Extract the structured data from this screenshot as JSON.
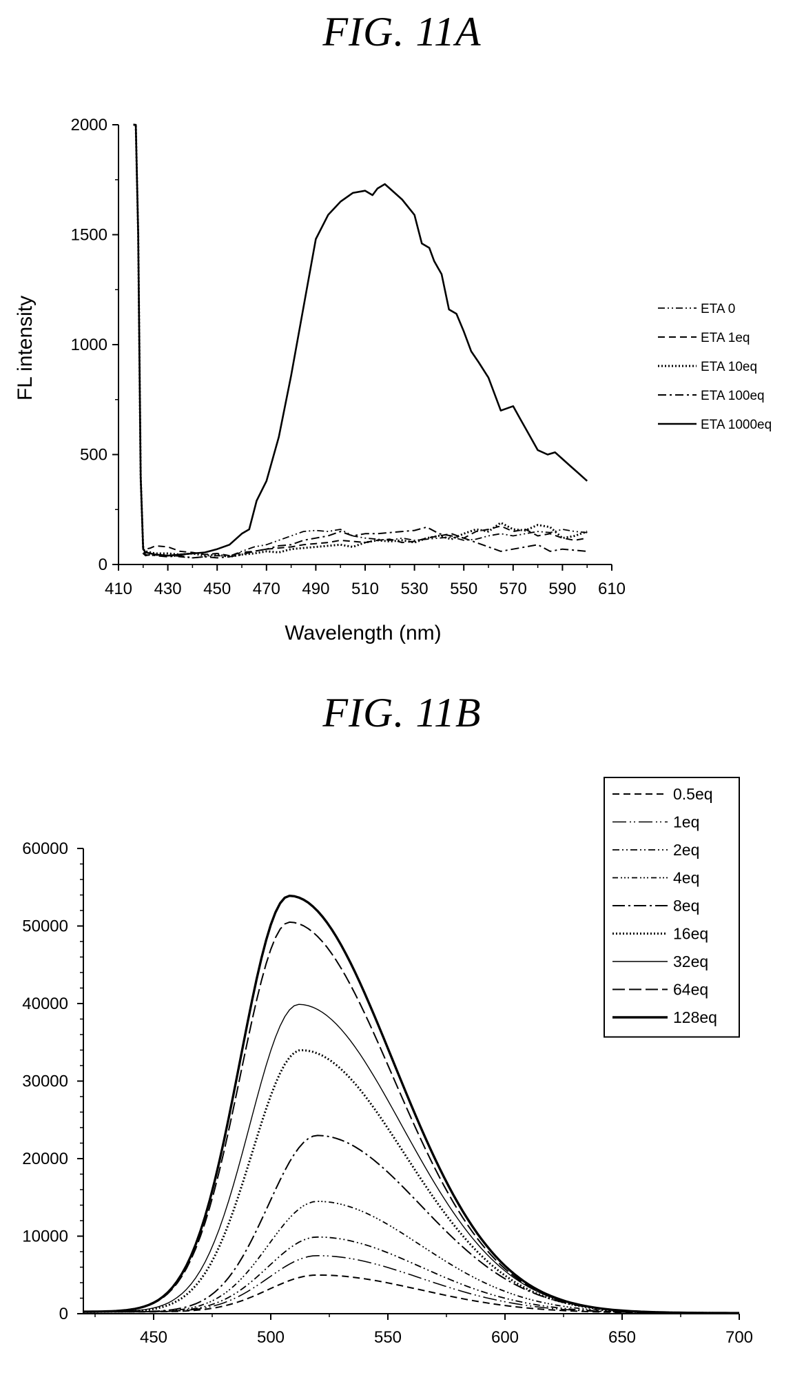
{
  "figures": {
    "a_title": "FIG. 11A",
    "b_title": "FIG. 11B"
  },
  "chart_data": [
    {
      "type": "line",
      "title": "FIG. 11A",
      "xlabel": "Wavelength (nm)",
      "ylabel": "FL intensity",
      "xlim": [
        410,
        610
      ],
      "ylim": [
        0,
        2000
      ],
      "xticks": [
        410,
        430,
        450,
        470,
        490,
        510,
        530,
        550,
        570,
        590,
        610
      ],
      "yticks": [
        0,
        500,
        1000,
        1500,
        2000
      ],
      "grid": false,
      "legend_position": "right",
      "series": [
        {
          "name": "ETA 0",
          "dash": "dash-dot-dot",
          "x": [
            416,
            417,
            418,
            419,
            420,
            421,
            423,
            425,
            430,
            435,
            440,
            445,
            450,
            455,
            460,
            465,
            470,
            475,
            480,
            485,
            490,
            495,
            500,
            505,
            510,
            515,
            520,
            525,
            530,
            535,
            540,
            545,
            550,
            555,
            560,
            565,
            570,
            575,
            580,
            585,
            590,
            595,
            600
          ],
          "y": [
            2000,
            2000,
            1500,
            400,
            60,
            45,
            40,
            42,
            40,
            35,
            30,
            35,
            40,
            38,
            60,
            80,
            90,
            110,
            130,
            150,
            155,
            150,
            160,
            130,
            120,
            115,
            110,
            120,
            110,
            115,
            120,
            125,
            110,
            115,
            130,
            140,
            130,
            140,
            150,
            145,
            160,
            150,
            145
          ]
        },
        {
          "name": "ETA 1eq",
          "dash": "dashed",
          "x": [
            416,
            417,
            418,
            419,
            420,
            421,
            423,
            425,
            430,
            435,
            440,
            445,
            450,
            455,
            460,
            465,
            470,
            475,
            480,
            485,
            490,
            495,
            500,
            505,
            510,
            515,
            520,
            525,
            530,
            535,
            540,
            545,
            550,
            555,
            560,
            565,
            570,
            575,
            580,
            585,
            590,
            595,
            600
          ],
          "y": [
            2000,
            2000,
            1500,
            400,
            80,
            70,
            75,
            85,
            80,
            60,
            55,
            45,
            50,
            40,
            55,
            60,
            70,
            75,
            80,
            90,
            95,
            100,
            110,
            105,
            100,
            110,
            115,
            100,
            105,
            120,
            130,
            140,
            120,
            150,
            160,
            175,
            150,
            160,
            130,
            140,
            120,
            110,
            120
          ]
        },
        {
          "name": "ETA 10eq",
          "dash": "dotted",
          "x": [
            416,
            417,
            418,
            419,
            420,
            421,
            423,
            425,
            430,
            435,
            440,
            445,
            450,
            455,
            460,
            465,
            470,
            475,
            480,
            485,
            490,
            495,
            500,
            505,
            510,
            515,
            520,
            525,
            530,
            535,
            540,
            545,
            550,
            555,
            560,
            565,
            570,
            575,
            580,
            585,
            590,
            595,
            600
          ],
          "y": [
            2000,
            2000,
            1500,
            400,
            70,
            60,
            55,
            50,
            50,
            45,
            50,
            40,
            45,
            35,
            45,
            50,
            60,
            55,
            70,
            75,
            80,
            85,
            90,
            80,
            100,
            110,
            105,
            110,
            100,
            120,
            130,
            115,
            140,
            160,
            150,
            190,
            160,
            155,
            180,
            170,
            120,
            130,
            150
          ]
        },
        {
          "name": "ETA 100eq",
          "dash": "dash-dot",
          "x": [
            416,
            417,
            418,
            419,
            420,
            421,
            423,
            425,
            430,
            435,
            440,
            445,
            450,
            455,
            460,
            465,
            470,
            475,
            480,
            485,
            490,
            495,
            500,
            505,
            510,
            515,
            520,
            525,
            530,
            535,
            540,
            545,
            550,
            555,
            560,
            565,
            570,
            575,
            580,
            585,
            590,
            595,
            600
          ],
          "y": [
            2000,
            2000,
            1500,
            400,
            50,
            40,
            45,
            40,
            35,
            40,
            30,
            35,
            30,
            35,
            45,
            60,
            70,
            85,
            90,
            110,
            120,
            130,
            150,
            130,
            140,
            140,
            145,
            150,
            155,
            170,
            140,
            130,
            120,
            100,
            80,
            60,
            70,
            80,
            90,
            60,
            70,
            65,
            60
          ]
        },
        {
          "name": "ETA 1000eq",
          "dash": "solid",
          "x": [
            416,
            417,
            418,
            419,
            420,
            421,
            423,
            425,
            430,
            435,
            440,
            445,
            450,
            455,
            460,
            463,
            466,
            470,
            475,
            480,
            485,
            490,
            495,
            500,
            505,
            510,
            513,
            515,
            518,
            520,
            525,
            530,
            533,
            536,
            538,
            541,
            544,
            547,
            550,
            553,
            556,
            560,
            565,
            570,
            573,
            576,
            580,
            584,
            587,
            590,
            593,
            596,
            600
          ],
          "y": [
            2000,
            2000,
            1500,
            400,
            70,
            55,
            50,
            45,
            40,
            45,
            50,
            55,
            70,
            90,
            140,
            160,
            290,
            380,
            580,
            860,
            1170,
            1480,
            1590,
            1650,
            1690,
            1700,
            1680,
            1710,
            1730,
            1710,
            1660,
            1590,
            1460,
            1440,
            1380,
            1320,
            1160,
            1140,
            1060,
            970,
            920,
            850,
            700,
            720,
            660,
            600,
            520,
            500,
            510,
            480,
            450,
            420,
            380
          ]
        }
      ]
    },
    {
      "type": "line",
      "title": "FIG. 11B",
      "xlabel": "",
      "ylabel": "",
      "xlim": [
        420,
        700
      ],
      "ylim": [
        0,
        60000
      ],
      "xticks": [
        450,
        500,
        550,
        600,
        650,
        700
      ],
      "yticks": [
        0,
        10000,
        20000,
        30000,
        40000,
        50000,
        60000
      ],
      "grid": false,
      "legend_position": "top-right",
      "peak_wavelengths": [
        520,
        520,
        520,
        520,
        520,
        513,
        512,
        508,
        508
      ],
      "series": [
        {
          "name": "0.5eq",
          "dash": "dashed",
          "peak": 4800
        },
        {
          "name": "1eq",
          "dash": "long-dash-dot-dot",
          "peak": 7300
        },
        {
          "name": "2eq",
          "dash": "dash-dot-dot",
          "peak": 9700
        },
        {
          "name": "4eq",
          "dash": "dash-dot-dot-dot",
          "peak": 14300
        },
        {
          "name": "8eq",
          "dash": "long-dash-dot",
          "peak": 22800
        },
        {
          "name": "16eq",
          "dash": "dotted",
          "peak": 33800
        },
        {
          "name": "32eq",
          "dash": "thin-solid",
          "peak": 39700
        },
        {
          "name": "64eq",
          "dash": "long-dash",
          "peak": 50300
        },
        {
          "name": "128eq",
          "dash": "thick-solid",
          "peak": 53700
        }
      ]
    }
  ]
}
